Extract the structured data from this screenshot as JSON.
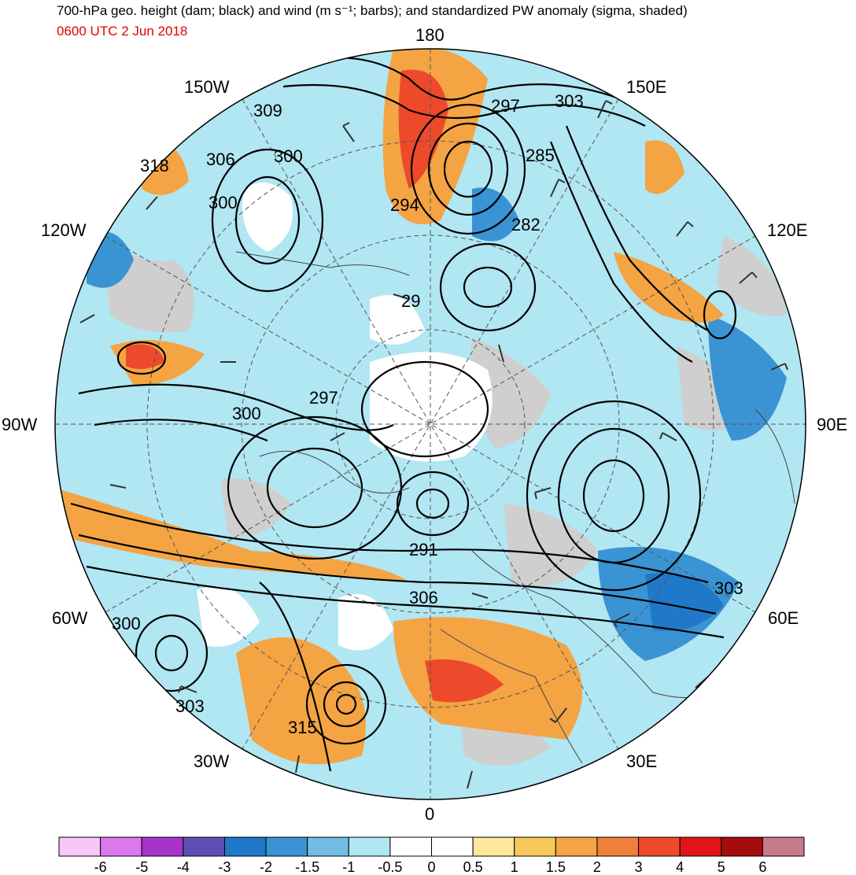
{
  "title": "700-hPa geo. height (dam; black) and wind (m s⁻¹; barbs); and standardized PW anomaly (sigma, shaded)",
  "subtitle": "0600 UTC 2 Jun 2018",
  "colors": {
    "title": "#000000",
    "subtitle": "#e00000"
  },
  "longitude_labels": [
    "180",
    "150E",
    "120E",
    "90E",
    "60E",
    "30E",
    "0",
    "30W",
    "60W",
    "90W",
    "120W",
    "150W"
  ],
  "contour_labels": [
    "309",
    "306",
    "300",
    "300",
    "318",
    "294",
    "297",
    "303",
    "285",
    "282",
    "29",
    "297",
    "300",
    "291",
    "306",
    "303",
    "300",
    "303",
    "315"
  ],
  "colorbar": {
    "ticks": [
      "-6",
      "-5",
      "-4",
      "-3",
      "-2",
      "-1.5",
      "-1",
      "-0.5",
      "0",
      "0.5",
      "1",
      "1.5",
      "2",
      "3",
      "4",
      "5",
      "6"
    ],
    "colors": [
      "#f7c8f7",
      "#dc78ee",
      "#a833cc",
      "#5e4fb4",
      "#1f78c8",
      "#3a93d3",
      "#74bde2",
      "#b1e6f3",
      "#ffffff",
      "#ffffff",
      "#fde89e",
      "#f7c85a",
      "#f4a443",
      "#ef7f3a",
      "#ec4a2b",
      "#e0141a",
      "#a50d0d",
      "#c67a8a"
    ]
  }
}
